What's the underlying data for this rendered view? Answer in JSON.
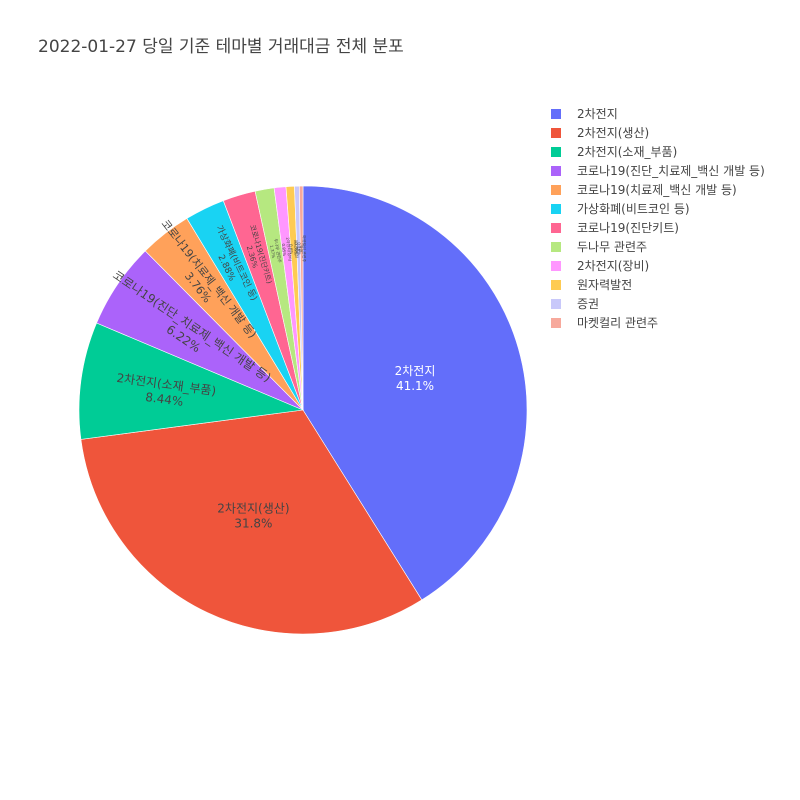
{
  "chart_data": {
    "type": "pie",
    "title": "2022-01-27 당일 기준 테마별 거래대금 전체 분포",
    "legend_position": "top-right",
    "slices": [
      {
        "label": "2차전지",
        "value": 41.1,
        "pct_text": "41.1%",
        "color": "#636efa",
        "text_color": "#ffffff"
      },
      {
        "label": "2차전지(생산)",
        "value": 31.8,
        "pct_text": "31.8%",
        "color": "#ef553b",
        "text_color": "#444444"
      },
      {
        "label": "2차전지(소재_부품)",
        "value": 8.44,
        "pct_text": "8.44%",
        "color": "#00cc96",
        "text_color": "#444444"
      },
      {
        "label": "코로나19(진단_치료제_백신 개발 등)",
        "value": 6.22,
        "pct_text": "6.22%",
        "color": "#ab63fa",
        "text_color": "#444444"
      },
      {
        "label": "코로나19(치료제_백신 개발 등)",
        "value": 3.76,
        "pct_text": "3.76%",
        "color": "#ffa15a",
        "text_color": "#444444"
      },
      {
        "label": "가상화폐(비트코인 등)",
        "value": 2.88,
        "pct_text": "2.88%",
        "color": "#19d3f3",
        "text_color": "#444444"
      },
      {
        "label": "코로나19(진단키트)",
        "value": 2.36,
        "pct_text": "2.36%",
        "color": "#ff6692",
        "text_color": "#444444"
      },
      {
        "label": "두나무 관련주",
        "value": 1.37,
        "pct_text": "1.37%",
        "color": "#b6e880",
        "text_color": "#444444"
      },
      {
        "label": "2차전지(장비)",
        "value": 0.85,
        "pct_text": "0.85%",
        "color": "#ff97ff",
        "text_color": "#444444"
      },
      {
        "label": "원자력발전",
        "value": 0.6,
        "pct_text": "0.6%",
        "color": "#fecb52",
        "text_color": "#444444"
      },
      {
        "label": "증권",
        "value": 0.35,
        "pct_text": "0.35%",
        "color": "#c8c8fa",
        "text_color": "#444444"
      },
      {
        "label": "마켓컬리 관련주",
        "value": 0.26,
        "pct_text": "0.26%",
        "color": "#f7a99c",
        "text_color": "#444444"
      }
    ]
  }
}
